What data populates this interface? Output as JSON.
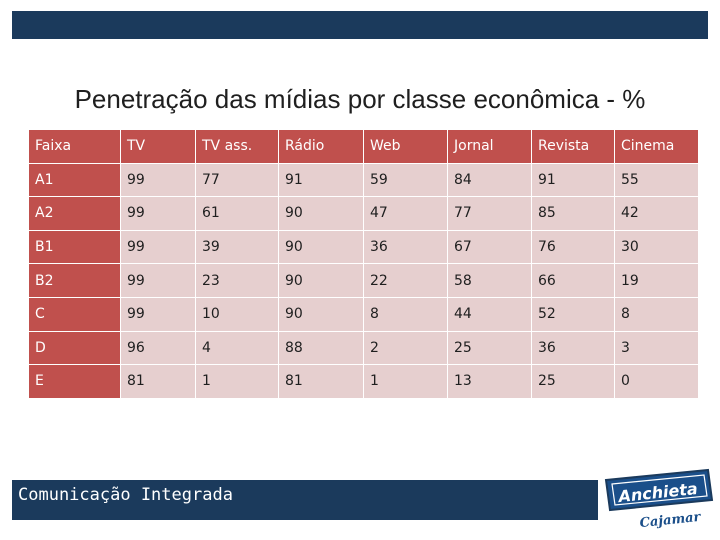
{
  "title": "Penetração das mídias por classe econômica - %",
  "table": {
    "headers": [
      "Faixa",
      "TV",
      "TV ass.",
      "Rádio",
      "Web",
      "Jornal",
      "Revista",
      "Cinema"
    ],
    "rows": [
      [
        "A1",
        "99",
        "77",
        "91",
        "59",
        "84",
        "91",
        "55"
      ],
      [
        "A2",
        "99",
        "61",
        "90",
        "47",
        "77",
        "85",
        "42"
      ],
      [
        "B1",
        "99",
        "39",
        "90",
        "36",
        "67",
        "76",
        "30"
      ],
      [
        "B2",
        "99",
        "23",
        "90",
        "22",
        "58",
        "66",
        "19"
      ],
      [
        "C",
        "99",
        "10",
        "90",
        "8",
        "44",
        "52",
        "8"
      ],
      [
        "D",
        "96",
        "4",
        "88",
        "2",
        "25",
        "36",
        "3"
      ],
      [
        "E",
        "81",
        "1",
        "81",
        "1",
        "13",
        "25",
        "0"
      ]
    ]
  },
  "footer": {
    "text": "Comunicação Integrada"
  },
  "logo": {
    "name": "Anchieta",
    "subtitle": "Cajamar"
  },
  "colors": {
    "navy": "#1b3a5c",
    "header_red": "#c0504d",
    "cell_pink": "#e6cfcf"
  }
}
